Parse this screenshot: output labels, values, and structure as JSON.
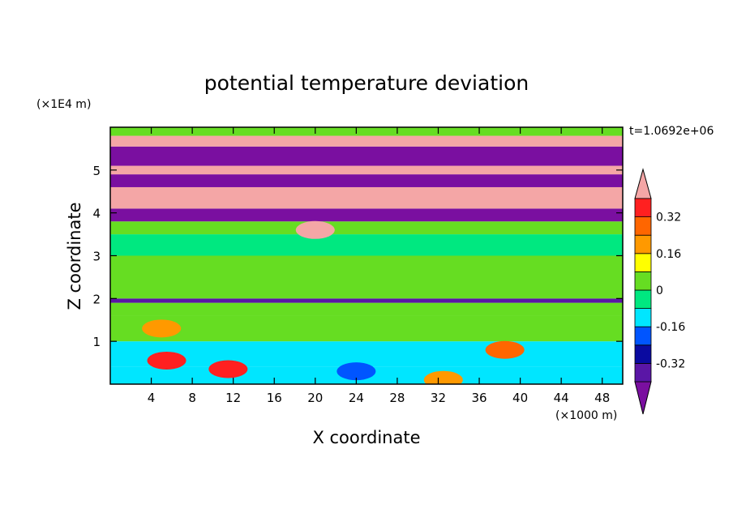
{
  "chart_data": {
    "type": "heatmap",
    "title": "potential temperature deviation",
    "xlabel": "X coordinate",
    "ylabel": "Z coordinate",
    "x_unit": "(×1000 m)",
    "y_unit": "(×1E4 m)",
    "time_label": "t=1.0692e+06",
    "xlim": [
      0,
      50
    ],
    "ylim": [
      0,
      6
    ],
    "x_ticks": [
      4,
      8,
      12,
      16,
      20,
      24,
      28,
      32,
      36,
      40,
      44,
      48
    ],
    "y_ticks": [
      1,
      2,
      3,
      4,
      5
    ],
    "colorbar": {
      "levels": [
        -0.4,
        -0.32,
        -0.24,
        -0.16,
        -0.08,
        0,
        0.08,
        0.16,
        0.24,
        0.32,
        0.4
      ],
      "labels": [
        "0.32",
        "0.16",
        "0",
        "-0.16",
        "-0.32"
      ],
      "label_values": [
        0.32,
        0.16,
        0,
        -0.16,
        -0.32
      ],
      "over_color": "#f4a6a6",
      "under_color": "#7a0fa0",
      "colors": [
        "#5a16a6",
        "#0a0aa0",
        "#0055ff",
        "#00e6ff",
        "#00e880",
        "#66dd22",
        "#ffff00",
        "#ff9900",
        "#ff6600",
        "#ff2020"
      ]
    },
    "bands": [
      {
        "z": [
          0.0,
          0.4
        ],
        "value": -0.1
      },
      {
        "z": [
          0.4,
          1.0
        ],
        "value": -0.12
      },
      {
        "z": [
          1.0,
          1.6
        ],
        "value": 0.02
      },
      {
        "z": [
          1.6,
          1.9
        ],
        "value": 0.0
      },
      {
        "z": [
          1.9,
          2.0
        ],
        "value": -0.35
      },
      {
        "z": [
          2.0,
          3.0
        ],
        "value": 0.02
      },
      {
        "z": [
          3.0,
          3.5
        ],
        "value": -0.05
      },
      {
        "z": [
          3.5,
          3.8
        ],
        "value": 0.0
      },
      {
        "z": [
          3.8,
          4.1
        ],
        "value": -0.5
      },
      {
        "z": [
          4.1,
          4.6
        ],
        "value": 0.5
      },
      {
        "z": [
          4.6,
          4.9
        ],
        "value": -0.5
      },
      {
        "z": [
          4.9,
          5.1
        ],
        "value": 0.5
      },
      {
        "z": [
          5.1,
          5.55
        ],
        "value": -0.5
      },
      {
        "z": [
          5.55,
          5.8
        ],
        "value": 0.5
      },
      {
        "z": [
          5.8,
          6.0
        ],
        "value": 0.0
      }
    ],
    "features": [
      {
        "x": 5.5,
        "z": 0.55,
        "value": 0.32
      },
      {
        "x": 11.5,
        "z": 0.35,
        "value": 0.32
      },
      {
        "x": 24,
        "z": 0.3,
        "value": -0.2
      },
      {
        "x": 32.5,
        "z": 0.1,
        "value": 0.2
      },
      {
        "x": 38.5,
        "z": 0.8,
        "value": 0.25
      },
      {
        "x": 5,
        "z": 1.3,
        "value": 0.18
      },
      {
        "x": 20,
        "z": 3.6,
        "value": 0.5
      }
    ]
  }
}
